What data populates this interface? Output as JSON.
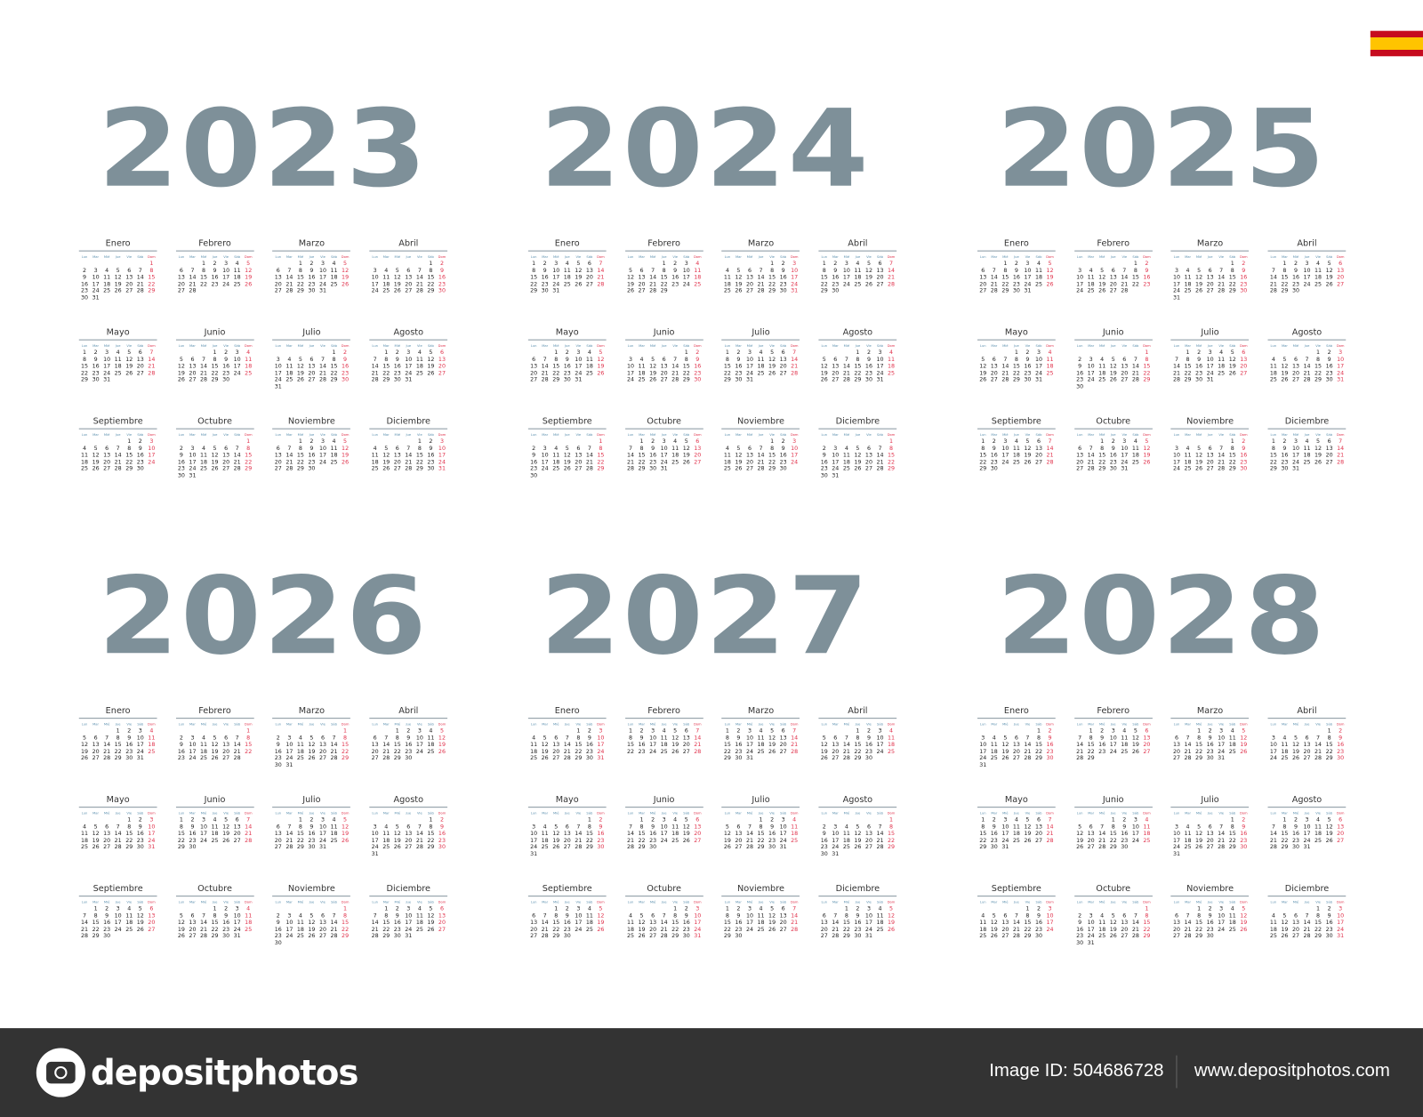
{
  "years": [
    2023,
    2024,
    2025,
    2026,
    2027,
    2028
  ],
  "months": [
    "Enero",
    "Febrero",
    "Marzo",
    "Abril",
    "Mayo",
    "Junio",
    "Julio",
    "Agosto",
    "Septiembre",
    "Octubre",
    "Noviembre",
    "Diciembre"
  ],
  "weekdays": [
    "Lun",
    "Mar",
    "Mié",
    "Jue",
    "Vie",
    "Sáb",
    "Dom"
  ],
  "week_starts_on": "Monday",
  "colors": {
    "year": "#7e9099",
    "sunday": "#e0304a",
    "weekday_header": "#5a8fae",
    "footer": "#333333"
  },
  "flag": "spain-flag",
  "footer": {
    "logo_text": "depositphotos",
    "image_id": "Image ID: 504686728",
    "url": "www.depositphotos.com"
  }
}
